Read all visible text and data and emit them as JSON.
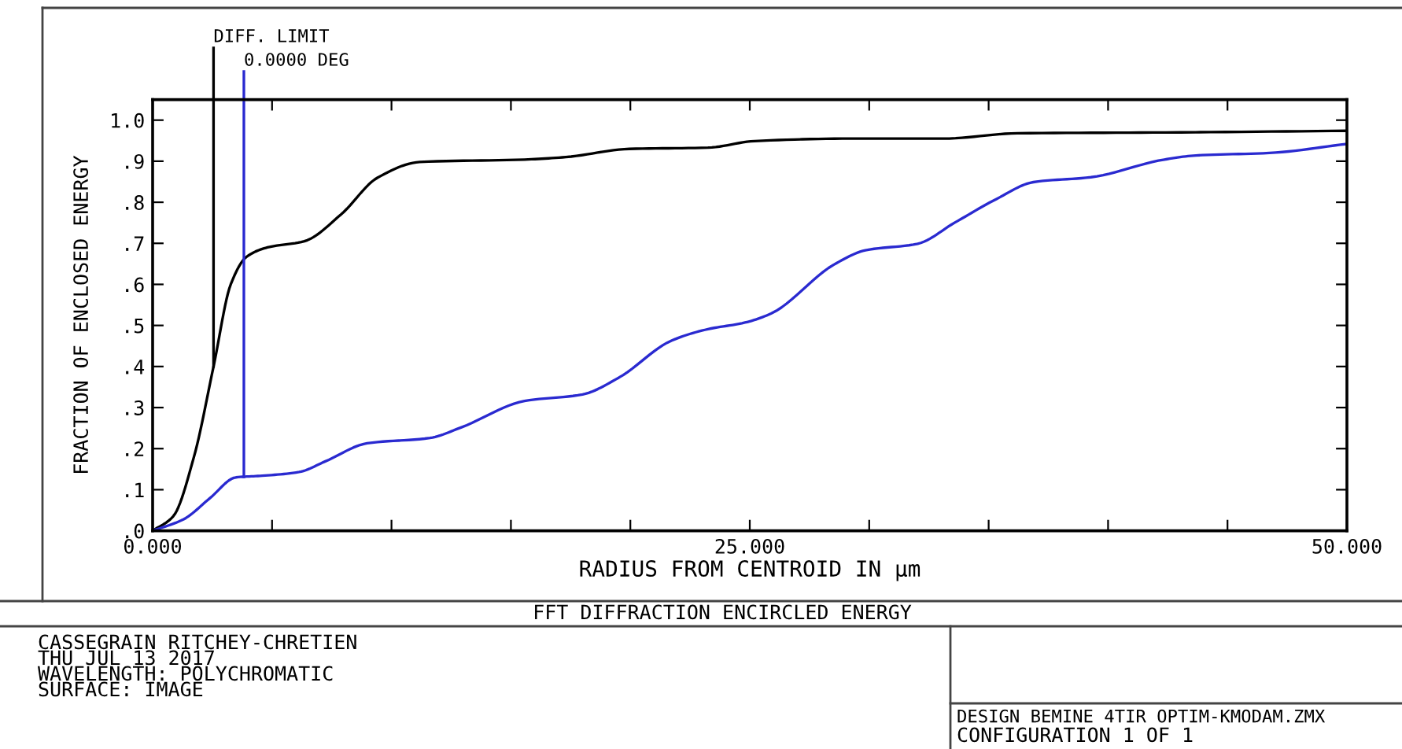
{
  "chart_data": {
    "type": "line",
    "title": "FFT DIFFRACTION ENCIRCLED ENERGY",
    "xlabel": "RADIUS FROM CENTROID IN µm",
    "ylabel": "FRACTION OF ENCLOSED ENERGY",
    "xlim": [
      0,
      50
    ],
    "xticks": [
      {
        "value": 0,
        "label": "0.000"
      },
      {
        "value": 5,
        "label": null
      },
      {
        "value": 10,
        "label": null
      },
      {
        "value": 15,
        "label": null
      },
      {
        "value": 20,
        "label": null
      },
      {
        "value": 25,
        "label": "25.000"
      },
      {
        "value": 30,
        "label": null
      },
      {
        "value": 35,
        "label": null
      },
      {
        "value": 40,
        "label": null
      },
      {
        "value": 45,
        "label": null
      },
      {
        "value": 50,
        "label": "50.000"
      }
    ],
    "ylim": [
      0,
      1.05
    ],
    "yticks": [
      {
        "value": 0,
        "label": ".0"
      },
      {
        "value": 0.1,
        "label": ".1"
      },
      {
        "value": 0.2,
        "label": ".2"
      },
      {
        "value": 0.3,
        "label": ".3"
      },
      {
        "value": 0.4,
        "label": ".4"
      },
      {
        "value": 0.5,
        "label": ".5"
      },
      {
        "value": 0.6,
        "label": ".6"
      },
      {
        "value": 0.7,
        "label": ".7"
      },
      {
        "value": 0.8,
        "label": ".8"
      },
      {
        "value": 0.9,
        "label": ".9"
      },
      {
        "value": 1.0,
        "label": "1.0"
      }
    ],
    "grid": false,
    "marker": "none",
    "line_style": "solid",
    "series": [
      {
        "color": "#000000",
        "x": [
          0,
          0.86,
          1.73,
          2.55,
          3.27,
          3.93,
          4.81,
          6.35,
          7.88,
          9.42,
          11.18,
          15.57,
          17.3,
          19.96,
          23.25,
          25.2,
          29.2,
          33.1,
          36.2,
          42.4,
          50
        ],
        "values": [
          0,
          0.035,
          0.18,
          0.4,
          0.6,
          0.667,
          0.69,
          0.705,
          0.77,
          0.86,
          0.898,
          0.904,
          0.91,
          0.93,
          0.933,
          0.949,
          0.955,
          0.955,
          0.968,
          0.97,
          0.974
        ]
      },
      {
        "color": "#2a2ad0",
        "x": [
          0,
          1.3,
          2.39,
          3.49,
          4.59,
          6.13,
          7.23,
          8.98,
          11.61,
          12.93,
          15.57,
          18.0,
          19.52,
          21.72,
          23.25,
          24.8,
          25.89,
          28.52,
          29.84,
          32.03,
          33.57,
          35.33,
          36.87,
          39.28,
          42.36,
          43.68,
          46.75,
          50
        ],
        "values": [
          0,
          0.028,
          0.079,
          0.13,
          0.134,
          0.143,
          0.169,
          0.213,
          0.226,
          0.252,
          0.316,
          0.332,
          0.373,
          0.463,
          0.491,
          0.507,
          0.529,
          0.648,
          0.683,
          0.699,
          0.75,
          0.808,
          0.849,
          0.861,
          0.904,
          0.914,
          0.92,
          0.942
        ]
      }
    ],
    "ref_lines": [
      {
        "axis": "x",
        "value": 2.55,
        "label": "DIFF. LIMIT",
        "color": "#000000"
      },
      {
        "axis": "x",
        "value": 3.82,
        "label": "0.0000 DEG",
        "color": "#2a2ad0"
      }
    ],
    "annotations": [
      "CASSEGRAIN RITCHEY-CHRETIEN",
      "THU JUL 13 2017",
      "WAVELENGTH: POLYCHROMATIC",
      "SURFACE: IMAGE",
      "DESIGN BEMINE 4TIR OPTIM-KMODAM.ZMX",
      "CONFIGURATION 1 OF 1"
    ]
  }
}
